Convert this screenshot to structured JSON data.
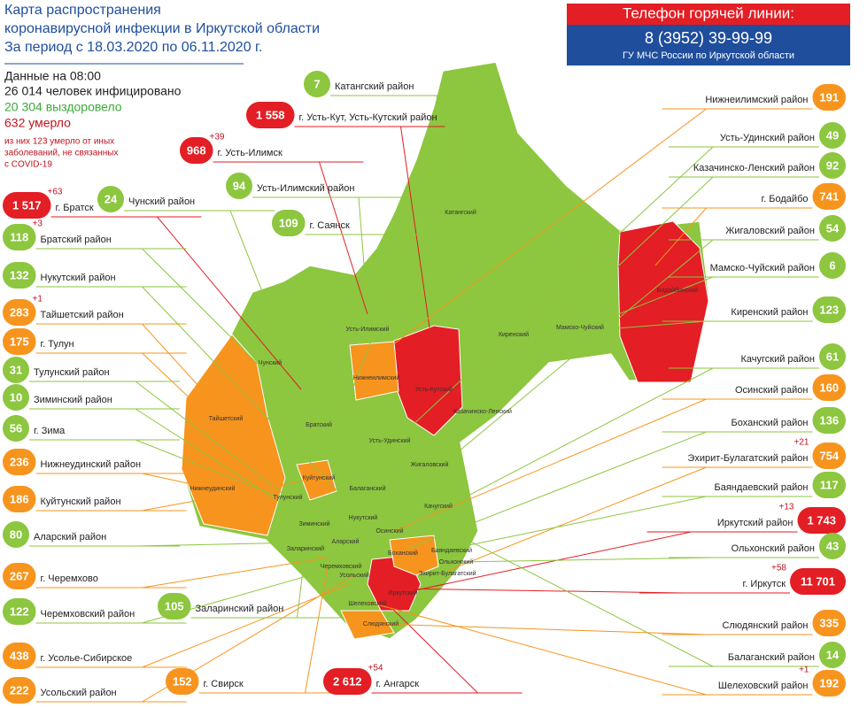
{
  "header": {
    "title_lines": [
      "Карта распространения",
      "коронавирусной инфекции в Иркутской области",
      "За период с 18.03.2020 по 06.11.2020 г."
    ]
  },
  "hotline": {
    "title": "Телефон горячей линии:",
    "phone": "8 (3952) 39-99-99",
    "org": "ГУ МЧС России по Иркутской области"
  },
  "stats": {
    "date": "Данные на 08:00",
    "infected": "26 014 человек инфицировано",
    "recovered": "20 304 выздоровело",
    "died": "632 умерло",
    "note_lines": [
      "из них 123 умерло от иных",
      "заболеваний, не связанных",
      "с COVID-19"
    ]
  },
  "callouts": [
    {
      "value": "1 517",
      "label": "г. Братск",
      "delta": "+63",
      "color": "#e31e24"
    },
    {
      "value": "118",
      "label": "Братский район",
      "delta": "+3",
      "color": "#8dc63f"
    },
    {
      "value": "132",
      "label": "Нукутский район",
      "color": "#8dc63f"
    },
    {
      "value": "283",
      "label": "Тайшетский район",
      "delta": "+1",
      "color": "#f7941d"
    },
    {
      "value": "175",
      "label": "г. Тулун",
      "color": "#f7941d"
    },
    {
      "value": "31",
      "label": "Тулунский район",
      "color": "#8dc63f"
    },
    {
      "value": "10",
      "label": "Зиминский район",
      "color": "#8dc63f"
    },
    {
      "value": "56",
      "label": "г. Зима",
      "color": "#8dc63f"
    },
    {
      "value": "236",
      "label": "Нижнеудинский район",
      "color": "#f7941d"
    },
    {
      "value": "186",
      "label": "Куйтунский район",
      "color": "#f7941d"
    },
    {
      "value": "80",
      "label": "Аларский район",
      "color": "#8dc63f"
    },
    {
      "value": "267",
      "label": "г. Черемхово",
      "color": "#f7941d"
    },
    {
      "value": "122",
      "label": "Черемховский район",
      "color": "#8dc63f"
    },
    {
      "value": "438",
      "label": "г. Усолье-Сибирское",
      "color": "#f7941d"
    },
    {
      "value": "222",
      "label": "Усольский район",
      "color": "#f7941d"
    },
    {
      "value": "7",
      "label": "Катангский район",
      "color": "#8dc63f"
    },
    {
      "value": "1 558",
      "label": "г. Усть-Кут, Усть-Кутский район",
      "color": "#e31e24"
    },
    {
      "value": "968",
      "label": "г. Усть-Илимск",
      "delta": "+39",
      "color": "#e31e24"
    },
    {
      "value": "24",
      "label": "Чунский район",
      "color": "#8dc63f"
    },
    {
      "value": "94",
      "label": "Усть-Илимский район",
      "color": "#8dc63f"
    },
    {
      "value": "109",
      "label": "г. Саянск",
      "color": "#8dc63f"
    },
    {
      "value": "105",
      "label": "Заларинский район",
      "color": "#8dc63f"
    },
    {
      "value": "152",
      "label": "г. Свирск",
      "color": "#f7941d"
    },
    {
      "value": "2 612",
      "label": "г. Ангарск",
      "delta": "+54",
      "color": "#e31e24"
    },
    {
      "value": "191",
      "label": "Нижнеилимский район",
      "color": "#f7941d"
    },
    {
      "value": "49",
      "label": "Усть-Удинский район",
      "color": "#8dc63f"
    },
    {
      "value": "92",
      "label": "Казачинско-Ленский район",
      "color": "#8dc63f"
    },
    {
      "value": "741",
      "label": "г. Бодайбо",
      "color": "#f7941d"
    },
    {
      "value": "54",
      "label": "Жигаловский район",
      "color": "#8dc63f"
    },
    {
      "value": "6",
      "label": "Мамско-Чуйский район",
      "color": "#8dc63f"
    },
    {
      "value": "123",
      "label": "Киренский район",
      "color": "#8dc63f"
    },
    {
      "value": "61",
      "label": "Качугский район",
      "color": "#8dc63f"
    },
    {
      "value": "160",
      "label": "Осинский район",
      "color": "#f7941d"
    },
    {
      "value": "136",
      "label": "Боханский район",
      "color": "#8dc63f"
    },
    {
      "value": "754",
      "label": "Эхирит-Булагатский район",
      "delta": "+21",
      "color": "#f7941d"
    },
    {
      "value": "117",
      "label": "Баяндаевский район",
      "color": "#8dc63f"
    },
    {
      "value": "1 743",
      "label": "Иркутский район",
      "delta": "+13",
      "color": "#e31e24"
    },
    {
      "value": "43",
      "label": "Ольхонский район",
      "color": "#8dc63f"
    },
    {
      "value": "11 701",
      "label": "г. Иркутск",
      "delta": "+58",
      "color": "#e31e24"
    },
    {
      "value": "335",
      "label": "Слюдянский район",
      "color": "#f7941d"
    },
    {
      "value": "14",
      "label": "Балаганский район",
      "color": "#8dc63f"
    },
    {
      "value": "192",
      "label": "Шелеховский район",
      "delta": "+1",
      "color": "#f7941d"
    }
  ],
  "map_labels": [
    "Катангский",
    "Усть-Илимский",
    "Бодайбинский",
    "Мамско-Чуйский",
    "Киренский",
    "Нижнеилимский",
    "Усть-Кутский",
    "Чунский",
    "Казачинско-Ленский",
    "Братский",
    "Тайшетский",
    "Усть-Удинский",
    "Жигаловский",
    "Куйтунский",
    "Балаганский",
    "Нижнеудинский",
    "Тулунский",
    "Нукутский",
    "Зиминский",
    "Качугский",
    "Аларский",
    "Осинский",
    "Заларинский",
    "Баяндаевский",
    "Черемховский",
    "Ольхонский",
    "Боханский",
    "Эхирит-Булагатский",
    "Усольский",
    "Иркутский",
    "Шелеховский",
    "Слюдянский"
  ]
}
